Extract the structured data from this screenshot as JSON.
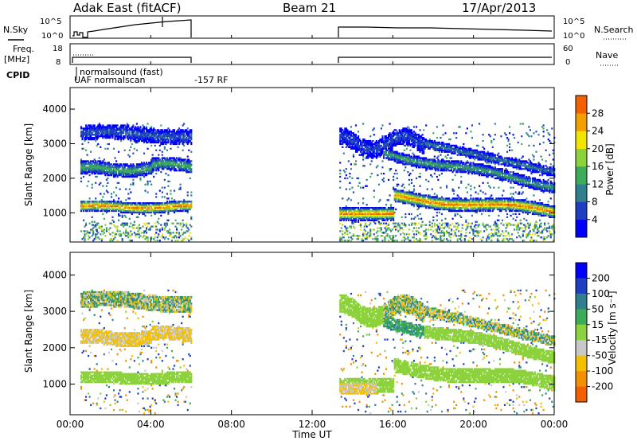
{
  "header": {
    "radar": "Adak East (fitACF)",
    "beam": "Beam 21",
    "date": "17/Apr/2013"
  },
  "top_panels": {
    "nsky_label": "N.Sky",
    "nsky_ticks": [
      "10^5",
      "10^0"
    ],
    "nsearch_label": "N.Search",
    "nsearch_ticks": [
      "10^5",
      "10^0"
    ],
    "freq_label_1": "Freq.",
    "freq_label_2": "[MHz]",
    "freq_ticks": [
      "18",
      "8"
    ],
    "nave_label": "Nave",
    "nave_ticks": [
      "60",
      "0"
    ],
    "cpid_label": "CPID",
    "cpid_text_1": "normalsound (fast)",
    "cpid_text_2": "UAF normalscan",
    "cpid_text_3": "-157 RF"
  },
  "chart_data": [
    {
      "type": "heatmap",
      "name": "power-panel",
      "ylabel": "Slant Range [km]",
      "yticks": [
        "1000",
        "2000",
        "3000",
        "4000"
      ],
      "ylim": [
        180,
        4600
      ],
      "colorbar_label": "Power [dB]",
      "colorbar_ticks": [
        "4",
        "8",
        "12",
        "16",
        "20",
        "24",
        "28"
      ],
      "colorbar_range": [
        0,
        32
      ],
      "colors": [
        "#0000ff",
        "#1e40c0",
        "#2f7f8f",
        "#3cab5a",
        "#8cd23c",
        "#f2e600",
        "#f2a000",
        "#f26000",
        "#e00000"
      ],
      "data_gaps_ut": [
        [
          6.0,
          13.3
        ]
      ],
      "bands": [
        {
          "segment": "early",
          "t": [
            0.5,
            6.0
          ],
          "range_km": [
            1000,
            1400
          ],
          "peak_db": 26
        },
        {
          "segment": "early",
          "t": [
            0.5,
            6.0
          ],
          "range_km": [
            2100,
            2600
          ],
          "peak_db": 12
        },
        {
          "segment": "early",
          "t": [
            0.5,
            6.0
          ],
          "range_km": [
            3000,
            3500
          ],
          "peak_db": 6
        },
        {
          "segment": "late",
          "t": [
            13.3,
            24.0
          ],
          "range_km": [
            1000,
            1700
          ],
          "peak_db": 26
        },
        {
          "segment": "late",
          "t": [
            13.3,
            24.0
          ],
          "range_km": [
            2000,
            3000
          ],
          "peak_db": 10
        }
      ]
    },
    {
      "type": "heatmap",
      "name": "velocity-panel",
      "ylabel": "Slant Range [km]",
      "yticks": [
        "1000",
        "2000",
        "3000",
        "4000"
      ],
      "ylim": [
        180,
        4600
      ],
      "colorbar_label": "Velocity [m s⁻¹]",
      "colorbar_ticks": [
        "200",
        "100",
        "50",
        "15",
        "-15",
        "-50",
        "-100",
        "-200"
      ],
      "colorbar_range": [
        -250,
        250
      ],
      "colors": [
        "#0000ff",
        "#1e40c0",
        "#2f7f8f",
        "#3cab5a",
        "#8cd23c",
        "#c8c8c8",
        "#f2c000",
        "#f29000",
        "#f26000",
        "#e00000"
      ],
      "data_gaps_ut": [
        [
          6.0,
          13.3
        ]
      ]
    }
  ],
  "time_axis": {
    "label": "Time UT",
    "ticks": [
      "00:00",
      "04:00",
      "08:00",
      "12:00",
      "16:00",
      "20:00",
      "00:00"
    ]
  }
}
